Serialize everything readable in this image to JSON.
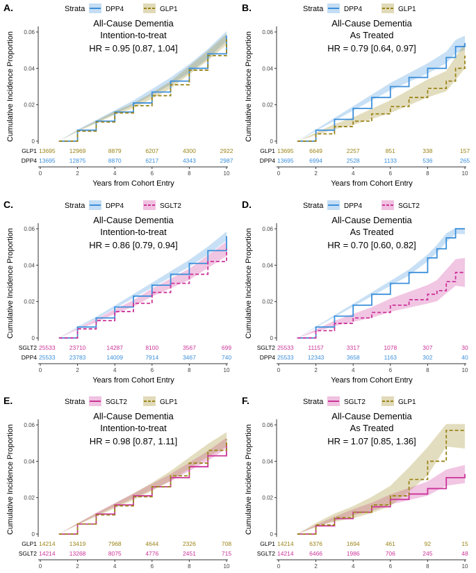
{
  "common": {
    "legend_title": "Strata",
    "ylabel": "Cumulative Incidence Proportion",
    "xlabel": "Years from Cohort Entry",
    "x_ticks": [
      0,
      2,
      4,
      6,
      8,
      10
    ],
    "y_ticks": [
      0,
      0.02,
      0.04,
      0.06
    ],
    "y_tick_labels": [
      "0",
      "0.02",
      "0.04",
      "0.06"
    ]
  },
  "colors": {
    "DPP4": "#3b8fdb",
    "GLP1": "#9a8418",
    "SGLT2": "#cc3399"
  },
  "chart_data": [
    {
      "panel": "A.",
      "type": "line",
      "title": "All-Cause Dementia",
      "subtitle": "Intention-to-treat",
      "hr": "HR = 0.95 [0.87, 1.04]",
      "xlim": [
        0,
        10
      ],
      "ylim": [
        0,
        0.06
      ],
      "legend_position": "top",
      "legend": [
        "DPP4",
        "GLP1"
      ],
      "series": [
        {
          "name": "DPP4",
          "style": "solid",
          "x": [
            1,
            2,
            3,
            4,
            5,
            6,
            7,
            8,
            9,
            10
          ],
          "y": [
            0,
            0.006,
            0.011,
            0.016,
            0.021,
            0.027,
            0.033,
            0.04,
            0.048,
            0.058
          ],
          "band": 0.003
        },
        {
          "name": "GLP1",
          "style": "dashed",
          "x": [
            1,
            2,
            3,
            4,
            5,
            6,
            7,
            8,
            9,
            10
          ],
          "y": [
            0,
            0.0055,
            0.0105,
            0.0155,
            0.0195,
            0.025,
            0.031,
            0.039,
            0.047,
            0.056
          ],
          "band": 0.003
        }
      ],
      "risk_table": [
        {
          "name": "GLP1",
          "values": [
            "13695",
            "12969",
            "8879",
            "6207",
            "4300",
            "2922"
          ]
        },
        {
          "name": "DPP4",
          "values": [
            "13695",
            "12875",
            "8870",
            "6217",
            "4343",
            "2987"
          ]
        }
      ]
    },
    {
      "panel": "B.",
      "type": "line",
      "title": "All-Cause Dementia",
      "subtitle": "As Treated",
      "hr": "HR = 0.79 [0.64, 0.97]",
      "xlim": [
        0,
        10
      ],
      "ylim": [
        0,
        0.06
      ],
      "legend_position": "top",
      "legend": [
        "DPP4",
        "GLP1"
      ],
      "series": [
        {
          "name": "DPP4",
          "style": "solid",
          "x": [
            1,
            2,
            3,
            4,
            5,
            6,
            7,
            8,
            9,
            9.5,
            10
          ],
          "y": [
            0,
            0.006,
            0.012,
            0.018,
            0.024,
            0.03,
            0.035,
            0.04,
            0.046,
            0.052,
            0.054
          ],
          "band": 0.004
        },
        {
          "name": "GLP1",
          "style": "dashed",
          "x": [
            1,
            2,
            3,
            4,
            5,
            6,
            7,
            8,
            9,
            9.5,
            10
          ],
          "y": [
            0,
            0.004,
            0.008,
            0.011,
            0.015,
            0.019,
            0.024,
            0.029,
            0.033,
            0.04,
            0.047
          ],
          "band": 0.007
        }
      ],
      "risk_table": [
        {
          "name": "GLP1",
          "values": [
            "13695",
            "6649",
            "2257",
            "851",
            "338",
            "157"
          ]
        },
        {
          "name": "DPP4",
          "values": [
            "13695",
            "6994",
            "2528",
            "1133",
            "536",
            "265"
          ]
        }
      ]
    },
    {
      "panel": "C.",
      "type": "line",
      "title": "All-Cause Dementia",
      "subtitle": "Intention-to-treat",
      "hr": "HR = 0.86 [0.79, 0.94]",
      "xlim": [
        0,
        10
      ],
      "ylim": [
        0,
        0.06
      ],
      "legend_position": "top",
      "legend": [
        "DPP4",
        "SGLT2"
      ],
      "series": [
        {
          "name": "DPP4",
          "style": "solid",
          "x": [
            1,
            2,
            3,
            4,
            5,
            6,
            7,
            8,
            9,
            10
          ],
          "y": [
            0,
            0.006,
            0.011,
            0.017,
            0.023,
            0.029,
            0.035,
            0.041,
            0.048,
            0.056
          ],
          "band": 0.0025
        },
        {
          "name": "SGLT2",
          "style": "dashed",
          "x": [
            1,
            2,
            3,
            4,
            5,
            6,
            7,
            8,
            9,
            10
          ],
          "y": [
            0,
            0.005,
            0.0095,
            0.0145,
            0.019,
            0.025,
            0.03,
            0.035,
            0.042,
            0.049
          ],
          "band": 0.004
        }
      ],
      "risk_table": [
        {
          "name": "SGLT2",
          "values": [
            "25533",
            "23710",
            "14287",
            "8100",
            "3567",
            "699"
          ]
        },
        {
          "name": "DPP4",
          "values": [
            "25533",
            "23783",
            "14009",
            "7914",
            "3467",
            "740"
          ]
        }
      ]
    },
    {
      "panel": "D.",
      "type": "line",
      "title": "All-Cause Dementia",
      "subtitle": "As Treated",
      "hr": "HR = 0.70 [0.60, 0.82]",
      "xlim": [
        0,
        10
      ],
      "ylim": [
        0,
        0.06
      ],
      "legend_position": "top",
      "legend": [
        "DPP4",
        "SGLT2"
      ],
      "series": [
        {
          "name": "DPP4",
          "style": "solid",
          "x": [
            1,
            2,
            3,
            4,
            5,
            6,
            7,
            8,
            8.5,
            9,
            9.5,
            10
          ],
          "y": [
            0,
            0.006,
            0.012,
            0.018,
            0.024,
            0.03,
            0.036,
            0.044,
            0.049,
            0.055,
            0.06,
            0.06
          ],
          "band": 0.003
        },
        {
          "name": "SGLT2",
          "style": "dashed",
          "x": [
            1,
            2,
            3,
            4,
            5,
            6,
            7,
            8,
            8.5,
            9,
            9.5,
            10
          ],
          "y": [
            0,
            0.004,
            0.008,
            0.011,
            0.014,
            0.018,
            0.021,
            0.024,
            0.026,
            0.031,
            0.036,
            0.036
          ],
          "band": 0.008
        }
      ],
      "risk_table": [
        {
          "name": "SGLT2",
          "values": [
            "25533",
            "11157",
            "3317",
            "1078",
            "307",
            "30"
          ]
        },
        {
          "name": "DPP4",
          "values": [
            "25533",
            "12343",
            "3658",
            "1163",
            "302",
            "40"
          ]
        }
      ]
    },
    {
      "panel": "E.",
      "type": "line",
      "title": "All-Cause Dementia",
      "subtitle": "Intention-to-treat",
      "hr": "HR = 0.98 [0.87, 1.11]",
      "xlim": [
        0,
        10
      ],
      "ylim": [
        0,
        0.06
      ],
      "legend_position": "top",
      "legend": [
        "SGLT2",
        "GLP1"
      ],
      "series": [
        {
          "name": "SGLT2",
          "style": "solid",
          "x": [
            1,
            2,
            3,
            4,
            5,
            6,
            7,
            8,
            9,
            10
          ],
          "y": [
            0,
            0.0055,
            0.011,
            0.016,
            0.021,
            0.026,
            0.031,
            0.037,
            0.043,
            0.05
          ],
          "band": 0.003
        },
        {
          "name": "GLP1",
          "style": "dashed",
          "x": [
            1,
            2,
            3,
            4,
            5,
            6,
            7,
            8,
            9,
            10
          ],
          "y": [
            0,
            0.0055,
            0.0105,
            0.0155,
            0.0205,
            0.026,
            0.032,
            0.039,
            0.046,
            0.052
          ],
          "band": 0.004
        }
      ],
      "risk_table": [
        {
          "name": "GLP1",
          "values": [
            "14214",
            "13419",
            "7968",
            "4644",
            "2326",
            "708"
          ]
        },
        {
          "name": "SGLT2",
          "values": [
            "14214",
            "13268",
            "8075",
            "4776",
            "2451",
            "715"
          ]
        }
      ]
    },
    {
      "panel": "F.",
      "type": "line",
      "title": "All-Cause Dementia",
      "subtitle": "As Treated",
      "hr": "HR = 1.07 [0.85, 1.36]",
      "xlim": [
        0,
        10
      ],
      "ylim": [
        0,
        0.06
      ],
      "legend_position": "top",
      "legend": [
        "SGLT2",
        "GLP1"
      ],
      "series": [
        {
          "name": "SGLT2",
          "style": "solid",
          "x": [
            1,
            2,
            3,
            4,
            5,
            6,
            7,
            8,
            9,
            10
          ],
          "y": [
            0,
            0.0045,
            0.0085,
            0.012,
            0.015,
            0.019,
            0.022,
            0.025,
            0.031,
            0.033
          ],
          "band": 0.005
        },
        {
          "name": "GLP1",
          "style": "dashed",
          "x": [
            1,
            2,
            3,
            4,
            5,
            6,
            7,
            8,
            9,
            10
          ],
          "y": [
            0,
            0.005,
            0.009,
            0.012,
            0.016,
            0.021,
            0.03,
            0.04,
            0.057,
            0.057
          ],
          "band": 0.01
        }
      ],
      "risk_table": [
        {
          "name": "GLP1",
          "values": [
            "14214",
            "6376",
            "1694",
            "461",
            "92",
            "15"
          ]
        },
        {
          "name": "SGLT2",
          "values": [
            "14214",
            "6466",
            "1986",
            "706",
            "245",
            "48"
          ]
        }
      ]
    }
  ]
}
